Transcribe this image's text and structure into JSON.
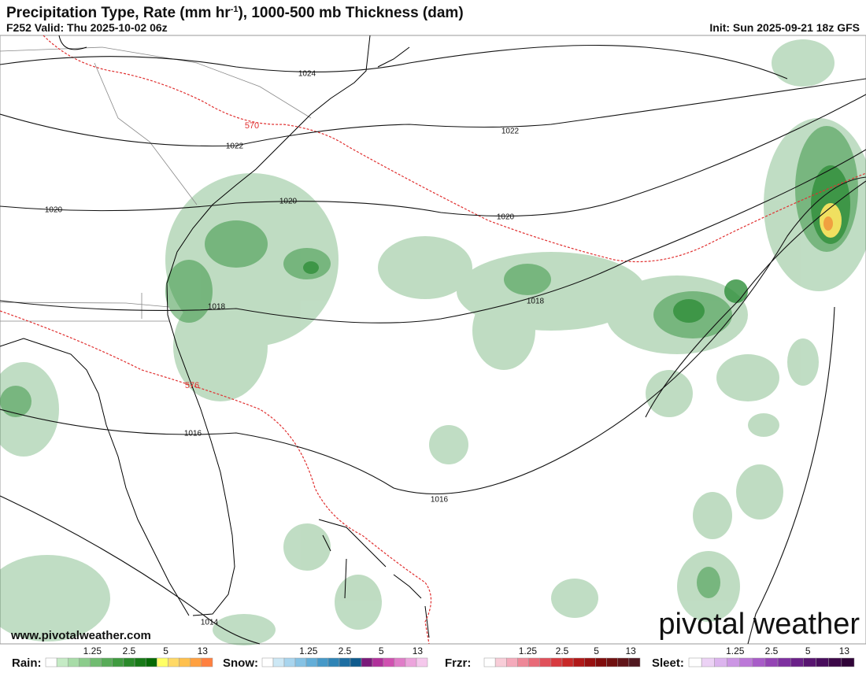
{
  "header": {
    "title": "Precipitation Type, Rate (mm hr",
    "title_sup": "-1",
    "title_end": "), 1000-500 mb Thickness (dam)",
    "valid": "F252 Valid: Thu 2025-10-02 06z",
    "init": "Init: Sun 2025-09-21 18z GFS"
  },
  "map": {
    "isobar_labels": [
      1024,
      1022,
      1022,
      1020,
      1020,
      1020,
      1018,
      1018,
      1016,
      1016,
      1014
    ],
    "thickness_labels": [
      570,
      576
    ]
  },
  "footer": {
    "website": "www.pivotalweather.com",
    "logo": "pivotal weather"
  },
  "legend": [
    {
      "label": "Rain:",
      "ticks": [
        "1.25",
        "2.5",
        "5",
        "13"
      ],
      "colors": [
        "#ffffff",
        "#c5ebc5",
        "#a8dca8",
        "#8ccc8c",
        "#71bc71",
        "#58ab58",
        "#3f9b3f",
        "#2a8a2a",
        "#177a17",
        "#056a05",
        "#ffff66",
        "#ffd966",
        "#ffc04d",
        "#ffa040",
        "#ff8040"
      ]
    },
    {
      "label": "Snow:",
      "ticks": [
        "1.25",
        "2.5",
        "5",
        "13"
      ],
      "colors": [
        "#ffffff",
        "#cde8f5",
        "#a8d5ee",
        "#85c2e4",
        "#63aed8",
        "#4699c8",
        "#2f84b6",
        "#1d6ea2",
        "#0f5a8c",
        "#7a1a7a",
        "#b0309a",
        "#d050b0",
        "#e07cc8",
        "#eca4dc",
        "#f5c8ec"
      ]
    },
    {
      "label": "Frzr:",
      "ticks": [
        "1.25",
        "2.5",
        "5",
        "13"
      ],
      "colors": [
        "#ffffff",
        "#f8cdd8",
        "#f4aabb",
        "#ee8898",
        "#e86a78",
        "#e0505a",
        "#d83a40",
        "#c82828",
        "#b01818",
        "#981010",
        "#800c0c",
        "#701010",
        "#601418",
        "#501820"
      ]
    },
    {
      "label": "Sleet:",
      "ticks": [
        "1.25",
        "2.5",
        "5",
        "13"
      ],
      "colors": [
        "#ffffff",
        "#ecd2f5",
        "#dcb4ee",
        "#cc96e4",
        "#bc78d8",
        "#a85cc8",
        "#9444b4",
        "#7e30a0",
        "#6a2088",
        "#581470",
        "#480c5c",
        "#3c0848",
        "#300438"
      ]
    }
  ]
}
